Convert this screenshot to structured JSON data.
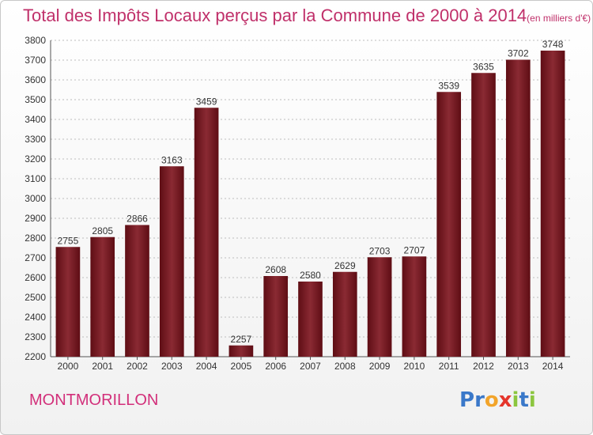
{
  "title": "Total des Impôts Locaux perçus par la Commune de 2000 à 2014",
  "unit_note": "(en milliers d'€)",
  "commune": "MONTMORILLON",
  "logo": {
    "text": "Proxiti",
    "letters": [
      "P",
      "r",
      "o",
      "x",
      "i",
      "t",
      "i"
    ],
    "colors": [
      "#3a78c9",
      "#3a78c9",
      "#f2a42a",
      "#e5352b",
      "#8cc63f",
      "#3a78c9",
      "#8cc63f"
    ]
  },
  "colors": {
    "bar": "#7a1a24",
    "title": "#c0306a",
    "commune": "#d22f7a",
    "grid": "#bdbdbd"
  },
  "chart_data": {
    "type": "bar",
    "title": "Total des Impôts Locaux perçus par la Commune de 2000 à 2014",
    "categories": [
      "2000",
      "2001",
      "2002",
      "2003",
      "2004",
      "2005",
      "2006",
      "2007",
      "2008",
      "2009",
      "2010",
      "2011",
      "2012",
      "2013",
      "2014"
    ],
    "values": [
      2755,
      2805,
      2866,
      3163,
      3459,
      2257,
      2608,
      2580,
      2629,
      2703,
      2707,
      3539,
      3635,
      3702,
      3748
    ],
    "ylim": [
      2200,
      3800
    ],
    "yticks": [
      2200,
      2300,
      2400,
      2500,
      2600,
      2700,
      2800,
      2900,
      3000,
      3100,
      3200,
      3300,
      3400,
      3500,
      3600,
      3700,
      3800
    ],
    "grid": true,
    "data_labels": true
  }
}
